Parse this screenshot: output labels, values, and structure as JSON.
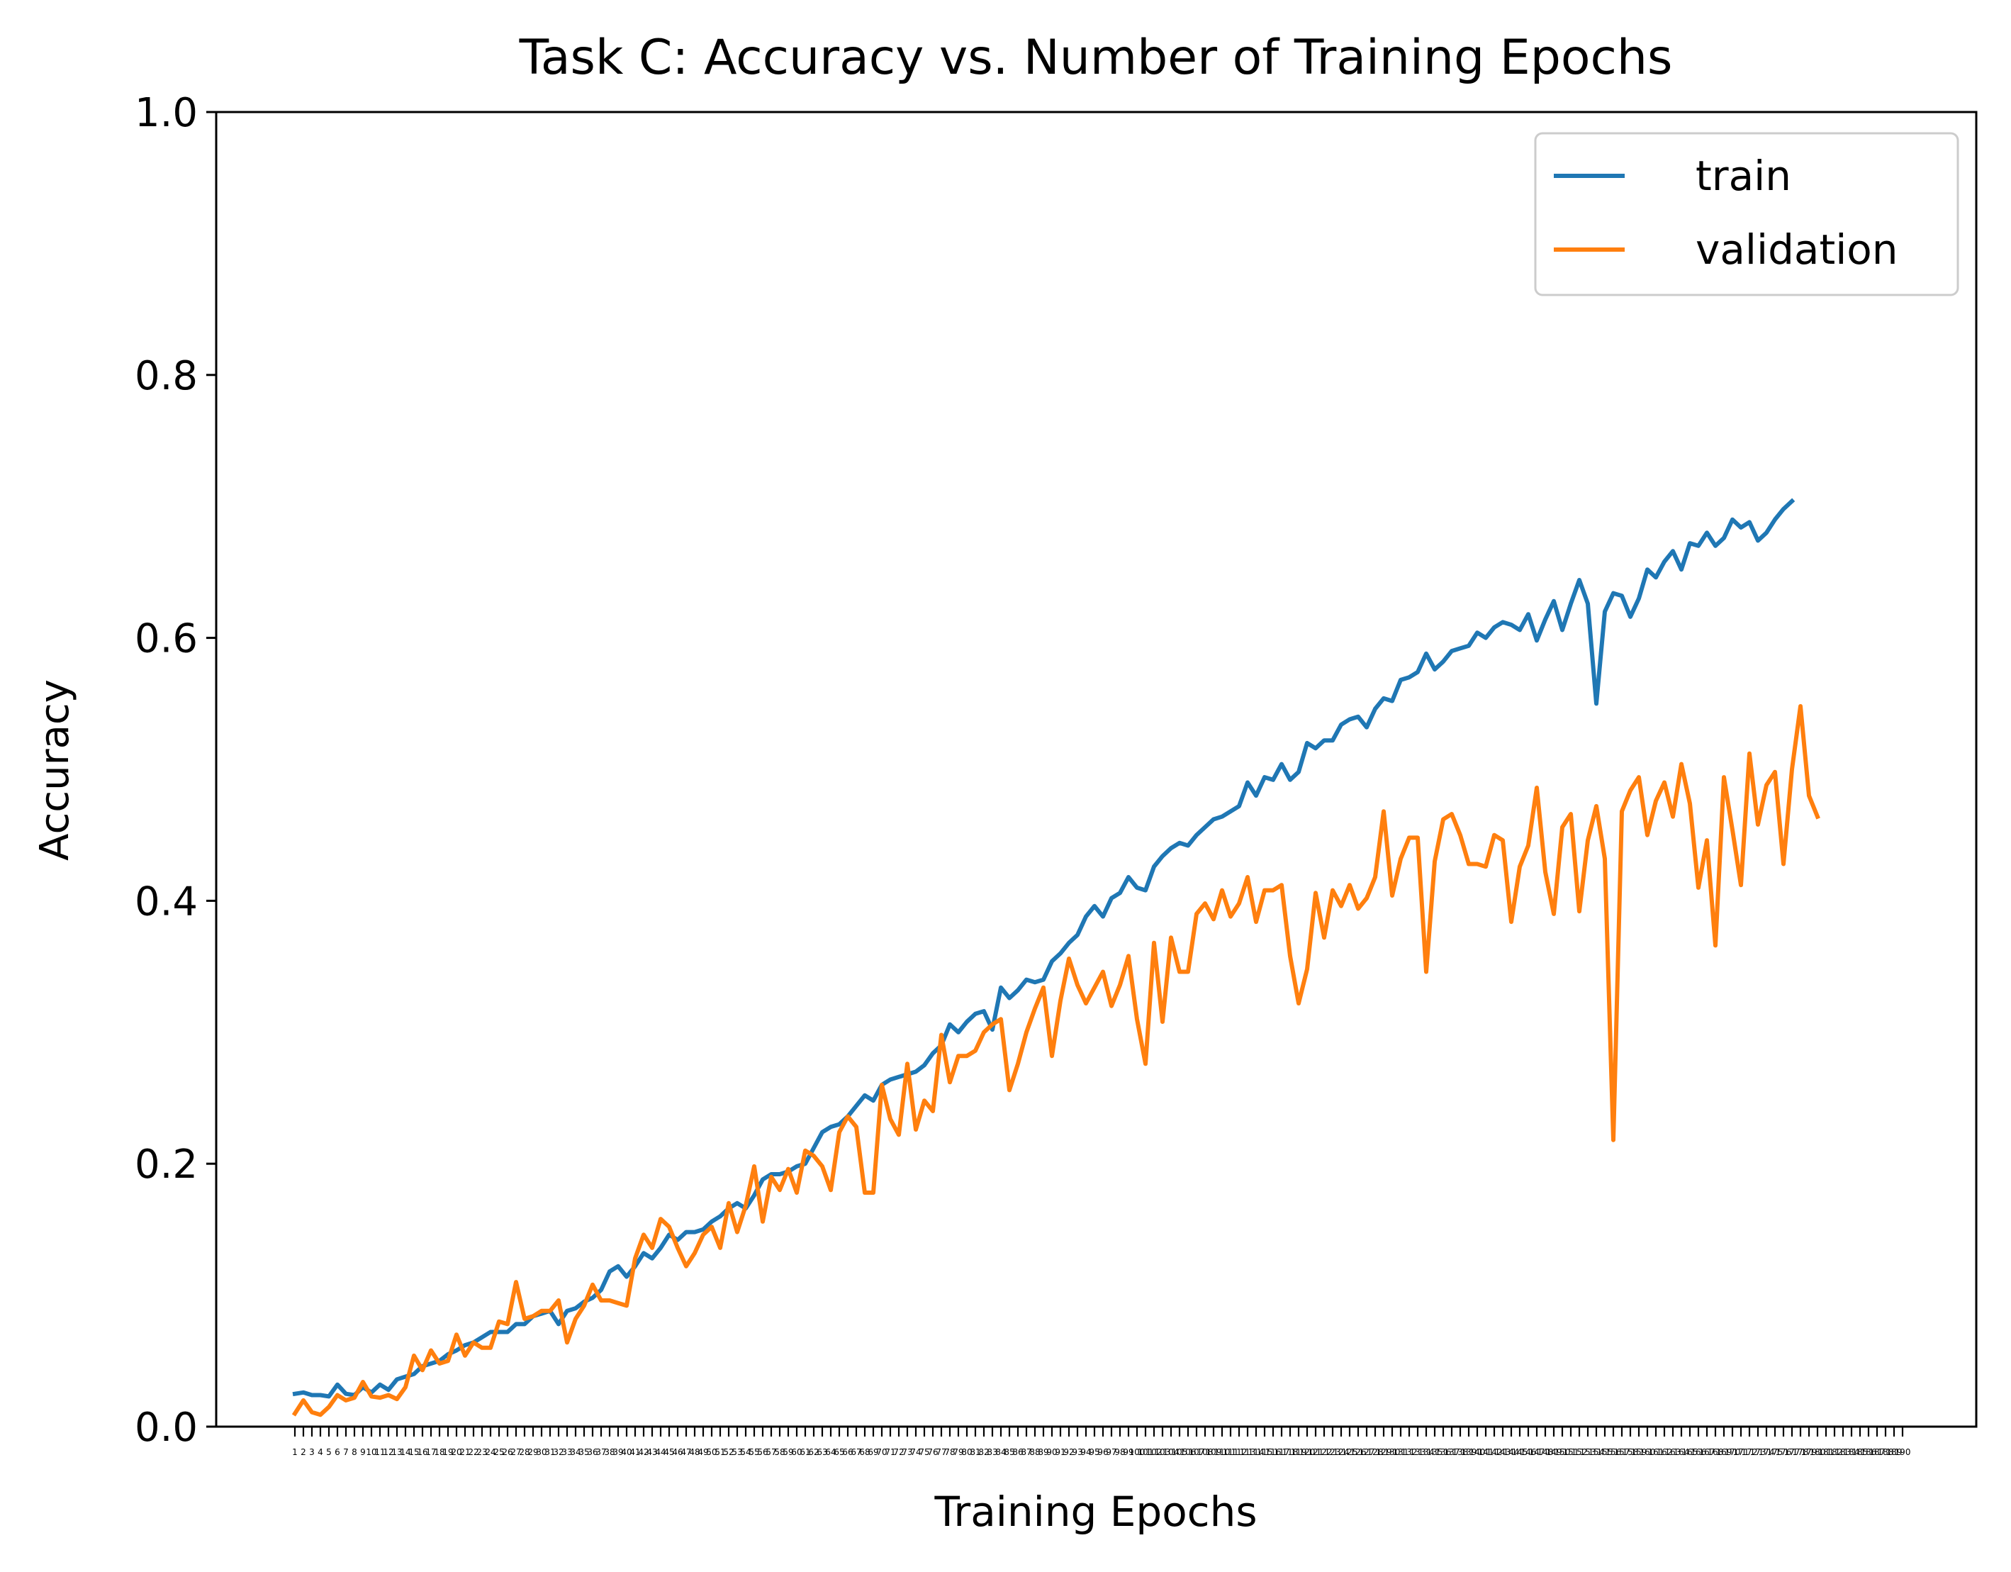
{
  "chart_data": {
    "type": "line",
    "title": "Task C: Accuracy vs. Number of Training Epochs",
    "xlabel": "Training Epochs",
    "ylabel": "Accuracy",
    "ylim": [
      0,
      1.0
    ],
    "xlim": [
      1,
      190
    ],
    "yticks": [
      "0.0",
      "0.2",
      "0.4",
      "0.6",
      "0.8",
      "1.0"
    ],
    "xtick_every_epoch": true,
    "grid": false,
    "legend_position": "top-right",
    "series": [
      {
        "name": "train",
        "color": "#1f77b4",
        "values": [
          0.025,
          0.026,
          0.024,
          0.024,
          0.023,
          0.032,
          0.025,
          0.024,
          0.03,
          0.026,
          0.032,
          0.028,
          0.036,
          0.038,
          0.04,
          0.046,
          0.048,
          0.05,
          0.055,
          0.058,
          0.062,
          0.064,
          0.068,
          0.072,
          0.072,
          0.072,
          0.078,
          0.078,
          0.084,
          0.086,
          0.088,
          0.078,
          0.088,
          0.09,
          0.095,
          0.098,
          0.104,
          0.118,
          0.122,
          0.114,
          0.122,
          0.132,
          0.128,
          0.136,
          0.146,
          0.142,
          0.148,
          0.148,
          0.15,
          0.156,
          0.16,
          0.166,
          0.17,
          0.166,
          0.176,
          0.188,
          0.192,
          0.192,
          0.194,
          0.198,
          0.2,
          0.212,
          0.224,
          0.228,
          0.23,
          0.236,
          0.244,
          0.252,
          0.248,
          0.26,
          0.264,
          0.266,
          0.268,
          0.27,
          0.275,
          0.284,
          0.29,
          0.306,
          0.3,
          0.308,
          0.314,
          0.316,
          0.302,
          0.334,
          0.326,
          0.332,
          0.34,
          0.338,
          0.34,
          0.354,
          0.36,
          0.368,
          0.374,
          0.388,
          0.396,
          0.388,
          0.402,
          0.406,
          0.418,
          0.41,
          0.408,
          0.426,
          0.434,
          0.44,
          0.444,
          0.442,
          0.45,
          0.456,
          0.462,
          0.464,
          0.468,
          0.472,
          0.49,
          0.48,
          0.494,
          0.492,
          0.504,
          0.492,
          0.498,
          0.52,
          0.516,
          0.522,
          0.522,
          0.534,
          0.538,
          0.54,
          0.532,
          0.546,
          0.554,
          0.552,
          0.568,
          0.57,
          0.574,
          0.588,
          0.576,
          0.582,
          0.59,
          0.592,
          0.594,
          0.604,
          0.6,
          0.608,
          0.612,
          0.61,
          0.606,
          0.618,
          0.598,
          0.614,
          0.628,
          0.606,
          0.626,
          0.644,
          0.626,
          0.55,
          0.62,
          0.634,
          0.632,
          0.616,
          0.63,
          0.652,
          0.646,
          0.658,
          0.666,
          0.652,
          0.672,
          0.67,
          0.68,
          0.67,
          0.676,
          0.69,
          0.684,
          0.688,
          0.674,
          0.68,
          0.69,
          0.698,
          0.704
        ]
      },
      {
        "name": "validation",
        "color": "#ff7f0e",
        "values": [
          0.01,
          0.02,
          0.011,
          0.009,
          0.015,
          0.024,
          0.02,
          0.022,
          0.034,
          0.023,
          0.022,
          0.024,
          0.021,
          0.03,
          0.054,
          0.043,
          0.058,
          0.048,
          0.05,
          0.07,
          0.054,
          0.064,
          0.06,
          0.06,
          0.08,
          0.078,
          0.11,
          0.082,
          0.084,
          0.088,
          0.088,
          0.096,
          0.064,
          0.082,
          0.092,
          0.108,
          0.096,
          0.096,
          0.094,
          0.092,
          0.128,
          0.146,
          0.136,
          0.158,
          0.152,
          0.136,
          0.122,
          0.132,
          0.146,
          0.152,
          0.136,
          0.17,
          0.148,
          0.168,
          0.198,
          0.156,
          0.19,
          0.18,
          0.196,
          0.178,
          0.21,
          0.206,
          0.198,
          0.18,
          0.224,
          0.236,
          0.228,
          0.178,
          0.178,
          0.26,
          0.234,
          0.222,
          0.276,
          0.226,
          0.248,
          0.24,
          0.298,
          0.262,
          0.282,
          0.282,
          0.286,
          0.3,
          0.306,
          0.31,
          0.256,
          0.276,
          0.3,
          0.318,
          0.334,
          0.282,
          0.324,
          0.356,
          0.336,
          0.322,
          0.334,
          0.346,
          0.32,
          0.336,
          0.358,
          0.31,
          0.276,
          0.368,
          0.308,
          0.372,
          0.346,
          0.346,
          0.39,
          0.398,
          0.386,
          0.408,
          0.388,
          0.398,
          0.418,
          0.384,
          0.408,
          0.408,
          0.412,
          0.358,
          0.322,
          0.348,
          0.406,
          0.372,
          0.408,
          0.396,
          0.412,
          0.394,
          0.402,
          0.418,
          0.468,
          0.404,
          0.432,
          0.448,
          0.448,
          0.346,
          0.43,
          0.462,
          0.466,
          0.45,
          0.428,
          0.428,
          0.426,
          0.45,
          0.446,
          0.384,
          0.426,
          0.442,
          0.486,
          0.422,
          0.39,
          0.456,
          0.466,
          0.392,
          0.446,
          0.472,
          0.432,
          0.218,
          0.468,
          0.484,
          0.494,
          0.45,
          0.476,
          0.49,
          0.464,
          0.504,
          0.474,
          0.41,
          0.446,
          0.366,
          0.494,
          0.454,
          0.412,
          0.512,
          0.458,
          0.488,
          0.498,
          0.428,
          0.5,
          0.548,
          0.48,
          0.464
        ]
      }
    ]
  }
}
